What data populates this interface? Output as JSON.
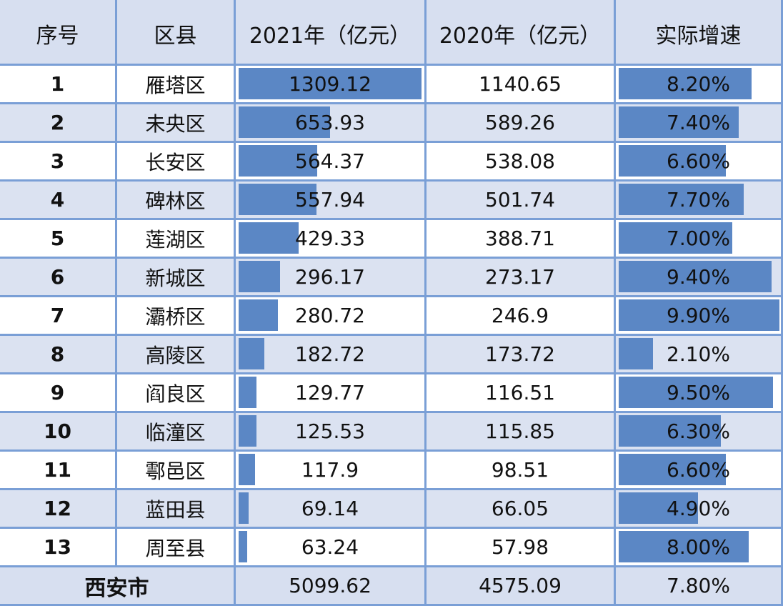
{
  "headers": {
    "index": "序号",
    "district": "区县",
    "y2021": "2021年（亿元）",
    "y2020": "2020年（亿元）",
    "growth": "实际增速"
  },
  "rows": [
    {
      "index": "1",
      "district": "雁塔区",
      "y2021": "1309.12",
      "y2020": "1140.65",
      "growth": "8.20%"
    },
    {
      "index": "2",
      "district": "未央区",
      "y2021": "653.93",
      "y2020": "589.26",
      "growth": "7.40%"
    },
    {
      "index": "3",
      "district": "长安区",
      "y2021": "564.37",
      "y2020": "538.08",
      "growth": "6.60%"
    },
    {
      "index": "4",
      "district": "碑林区",
      "y2021": "557.94",
      "y2020": "501.74",
      "growth": "7.70%"
    },
    {
      "index": "5",
      "district": "莲湖区",
      "y2021": "429.33",
      "y2020": "388.71",
      "growth": "7.00%"
    },
    {
      "index": "6",
      "district": "新城区",
      "y2021": "296.17",
      "y2020": "273.17",
      "growth": "9.40%"
    },
    {
      "index": "7",
      "district": "灞桥区",
      "y2021": "280.72",
      "y2020": "246.9",
      "growth": "9.90%"
    },
    {
      "index": "8",
      "district": "高陵区",
      "y2021": "182.72",
      "y2020": "173.72",
      "growth": "2.10%"
    },
    {
      "index": "9",
      "district": "阎良区",
      "y2021": "129.77",
      "y2020": "116.51",
      "growth": "9.50%"
    },
    {
      "index": "10",
      "district": "临潼区",
      "y2021": "125.53",
      "y2020": "115.85",
      "growth": "6.30%"
    },
    {
      "index": "11",
      "district": "鄠邑区",
      "y2021": "117.9",
      "y2020": "98.51",
      "growth": "6.60%"
    },
    {
      "index": "12",
      "district": "蓝田县",
      "y2021": "69.14",
      "y2020": "66.05",
      "growth": "4.90%"
    },
    {
      "index": "13",
      "district": "周至县",
      "y2021": "63.24",
      "y2020": "57.98",
      "growth": "8.00%"
    }
  ],
  "total": {
    "label": "西安市",
    "y2021": "5099.62",
    "y2020": "4575.09",
    "growth": "7.80%"
  },
  "colors": {
    "bar": "#5b87c5",
    "border": "#7a9fd6",
    "header_bg": "#d7dff0",
    "row_alt_bg": "#dbe2f1",
    "row_bg": "#ffffff"
  },
  "chart_data": {
    "type": "table",
    "title": "",
    "columns": [
      "序号",
      "区县",
      "2021年（亿元）",
      "2020年（亿元）",
      "实际增速"
    ],
    "categories": [
      "雁塔区",
      "未央区",
      "长安区",
      "碑林区",
      "莲湖区",
      "新城区",
      "灞桥区",
      "高陵区",
      "阎良区",
      "临潼区",
      "鄠邑区",
      "蓝田县",
      "周至县"
    ],
    "series": [
      {
        "name": "2021年（亿元）",
        "values": [
          1309.12,
          653.93,
          564.37,
          557.94,
          429.33,
          296.17,
          280.72,
          182.72,
          129.77,
          125.53,
          117.9,
          69.14,
          63.24
        ],
        "data_bars": true
      },
      {
        "name": "2020年（亿元）",
        "values": [
          1140.65,
          589.26,
          538.08,
          501.74,
          388.71,
          273.17,
          246.9,
          173.72,
          116.51,
          115.85,
          98.51,
          66.05,
          57.98
        ],
        "data_bars": false
      },
      {
        "name": "实际增速",
        "values": [
          8.2,
          7.4,
          6.6,
          7.7,
          7.0,
          9.4,
          9.9,
          2.1,
          9.5,
          6.3,
          6.6,
          4.9,
          8.0
        ],
        "unit": "%",
        "data_bars": true
      }
    ],
    "total": {
      "name": "西安市",
      "y2021": 5099.62,
      "y2020": 4575.09,
      "growth": 7.8
    }
  }
}
